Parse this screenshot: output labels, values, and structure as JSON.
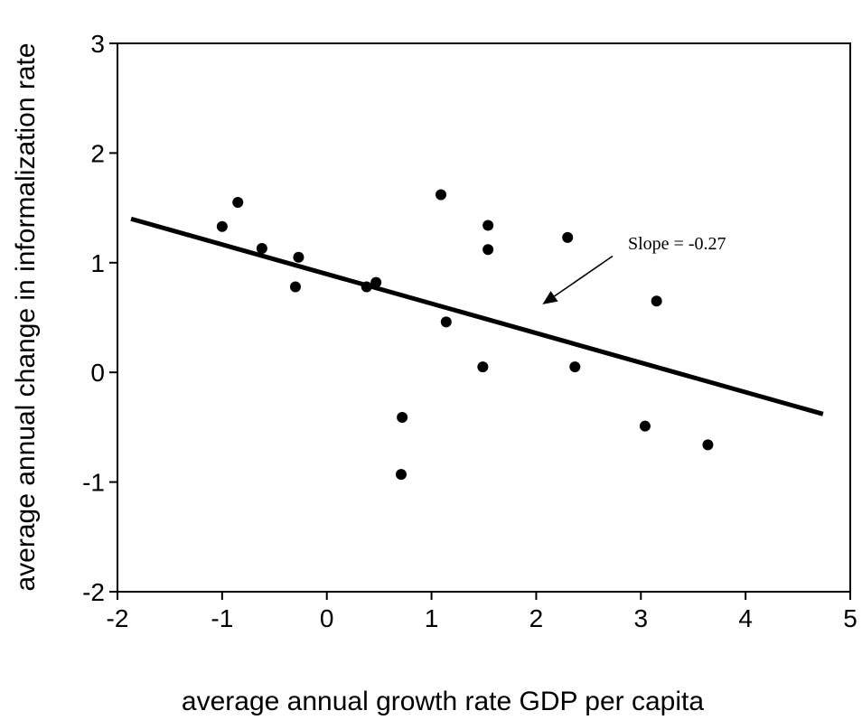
{
  "chart_data": {
    "type": "scatter",
    "title": "",
    "xlabel": "average annual growth rate GDP per capita",
    "ylabel": "average annual change in informalization rate",
    "xlim": [
      -2,
      5
    ],
    "ylim": [
      -2,
      3
    ],
    "x_ticks": [
      "-2",
      "-1",
      "0",
      "1",
      "2",
      "3",
      "4",
      "5"
    ],
    "y_ticks": [
      "-2",
      "-1",
      "0",
      "1",
      "2",
      "3"
    ],
    "grid": false,
    "series": [
      {
        "type": "scatter",
        "points": [
          {
            "x": -1.0,
            "y": 1.33
          },
          {
            "x": -0.85,
            "y": 1.55
          },
          {
            "x": -0.62,
            "y": 1.13
          },
          {
            "x": -0.3,
            "y": 0.78
          },
          {
            "x": -0.27,
            "y": 1.05
          },
          {
            "x": 0.38,
            "y": 0.78
          },
          {
            "x": 0.47,
            "y": 0.82
          },
          {
            "x": 0.72,
            "y": -0.41
          },
          {
            "x": 0.71,
            "y": -0.93
          },
          {
            "x": 1.09,
            "y": 1.62
          },
          {
            "x": 1.14,
            "y": 0.46
          },
          {
            "x": 1.49,
            "y": 0.05
          },
          {
            "x": 1.54,
            "y": 1.34
          },
          {
            "x": 1.54,
            "y": 1.12
          },
          {
            "x": 2.3,
            "y": 1.23
          },
          {
            "x": 2.37,
            "y": 0.05
          },
          {
            "x": 3.04,
            "y": -0.49
          },
          {
            "x": 3.15,
            "y": 0.65
          },
          {
            "x": 3.64,
            "y": -0.66
          }
        ]
      },
      {
        "type": "line",
        "x": [
          -1.87,
          4.74
        ],
        "y": [
          1.4,
          -0.38
        ]
      }
    ],
    "annotation": {
      "text": "Slope = -0.27",
      "arrow_from": {
        "x": 2.73,
        "y": 1.06
      },
      "arrow_to": {
        "x": 2.06,
        "y": 0.62
      }
    }
  }
}
